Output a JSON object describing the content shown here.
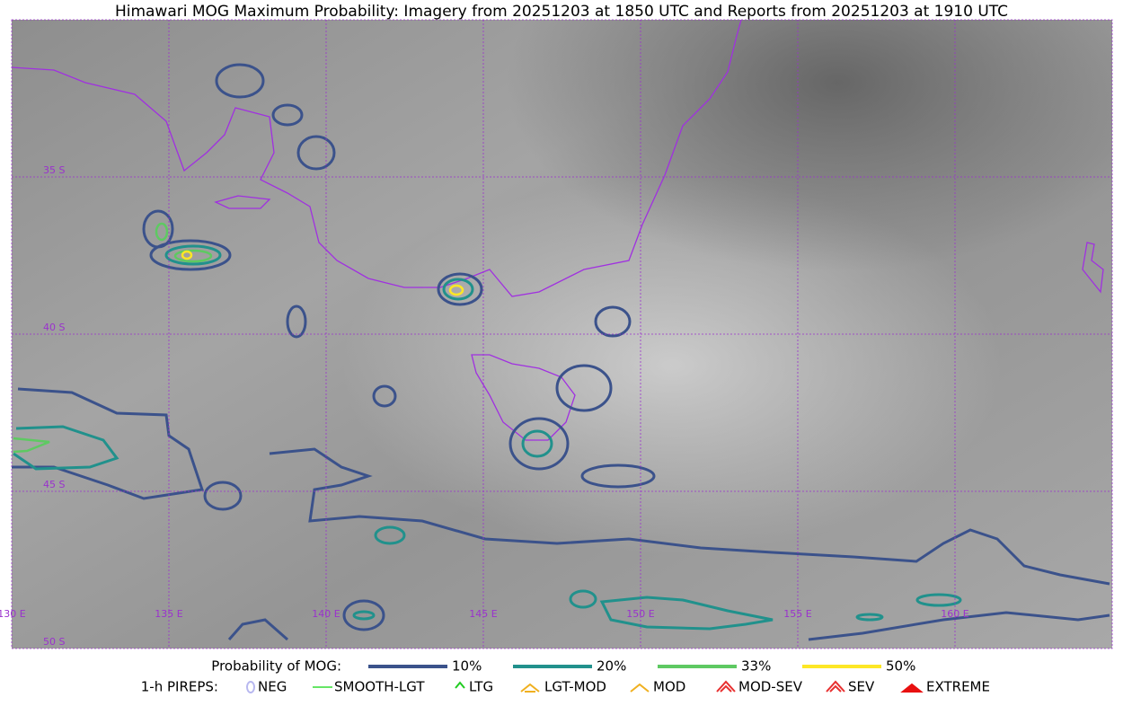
{
  "title": "Himawari MOG Maximum Probability: Imagery from 20251203 at 1850 UTC and Reports from 20251203 at 1910 UTC",
  "map": {
    "lat_labels": [
      "35 S",
      "40 S",
      "45 S",
      "50 S"
    ],
    "lon_labels": [
      "130 E",
      "135 E",
      "140 E",
      "145 E",
      "150 E",
      "155 E",
      "160 E"
    ]
  },
  "legend": {
    "probability": {
      "label": "Probability of MOG:",
      "items": [
        {
          "label": "10%",
          "color": "#3b528b"
        },
        {
          "label": "20%",
          "color": "#21918c"
        },
        {
          "label": "33%",
          "color": "#5ec962"
        },
        {
          "label": "50%",
          "color": "#fde725"
        }
      ]
    },
    "pireps": {
      "label": "1-h PIREPS:",
      "items": [
        {
          "label": "NEG",
          "color": "#b8b8f0"
        },
        {
          "label": "SMOOTH-LGT",
          "color": "#33dd33"
        },
        {
          "label": "LTG",
          "color": "#22cc22"
        },
        {
          "label": "LGT-MOD",
          "color": "#f0b020"
        },
        {
          "label": "MOD",
          "color": "#f0b020"
        },
        {
          "label": "MOD-SEV",
          "color": "#e83030"
        },
        {
          "label": "SEV",
          "color": "#e83030"
        },
        {
          "label": "EXTREME",
          "color": "#e81010"
        }
      ]
    }
  }
}
